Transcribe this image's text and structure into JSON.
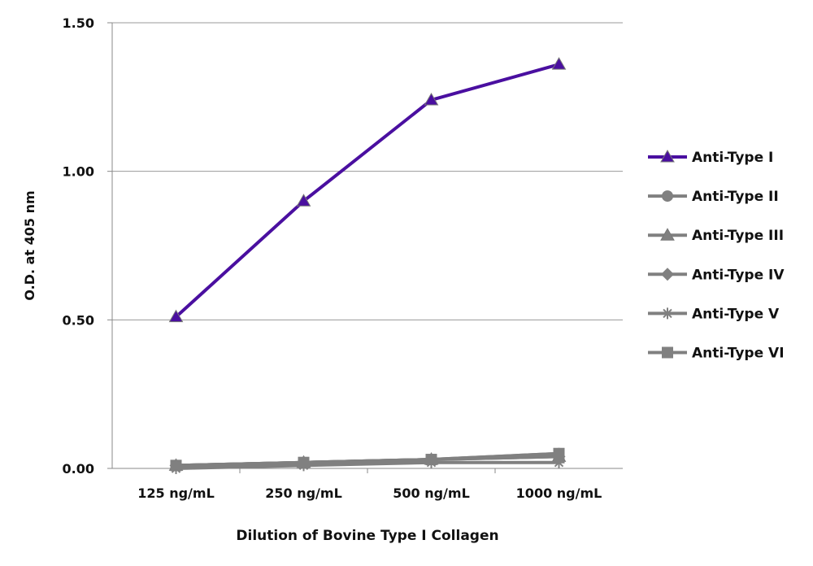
{
  "chart_data": {
    "type": "line",
    "title": "",
    "xlabel": "Dilution of Bovine Type I Collagen",
    "ylabel": "O.D. at 405 nm",
    "categories": [
      "125 ng/mL",
      "250 ng/mL",
      "500 ng/mL",
      "1000 ng/mL"
    ],
    "ylim": [
      0,
      1.5
    ],
    "yticks": [
      "0.00",
      "0.50",
      "1.00",
      "1.50"
    ],
    "ytick_values": [
      0,
      0.5,
      1.0,
      1.5
    ],
    "grid": "horizontal",
    "legend_position": "right",
    "series": [
      {
        "name": "Anti-Type I",
        "values": [
          0.51,
          0.9,
          1.24,
          1.36
        ],
        "color": "#4a0fa0",
        "marker": "triangle"
      },
      {
        "name": "Anti-Type II",
        "values": [
          0.01,
          0.02,
          0.03,
          0.05
        ],
        "color": "#808080",
        "marker": "circle"
      },
      {
        "name": "Anti-Type III",
        "values": [
          0.01,
          0.02,
          0.03,
          0.04
        ],
        "color": "#808080",
        "marker": "triangle"
      },
      {
        "name": "Anti-Type IV",
        "values": [
          0.01,
          0.02,
          0.03,
          0.04
        ],
        "color": "#808080",
        "marker": "diamond"
      },
      {
        "name": "Anti-Type V",
        "values": [
          0.0,
          0.01,
          0.02,
          0.02
        ],
        "color": "#808080",
        "marker": "star"
      },
      {
        "name": "Anti-Type VI",
        "values": [
          0.01,
          0.02,
          0.03,
          0.05
        ],
        "color": "#808080",
        "marker": "square"
      }
    ]
  }
}
